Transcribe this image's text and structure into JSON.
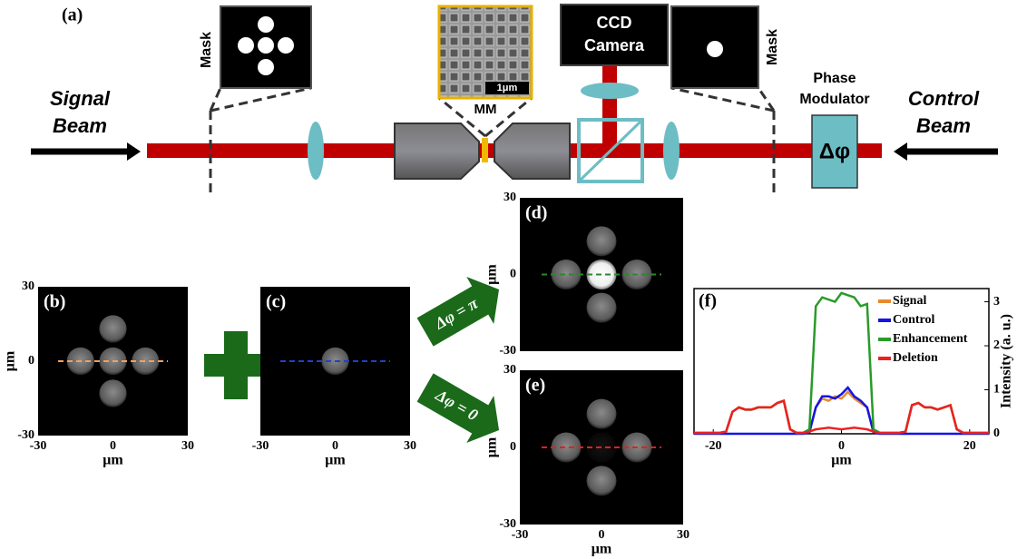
{
  "panel_a": {
    "label": "(a)",
    "signal_beam": [
      "Signal",
      "Beam"
    ],
    "control_beam": [
      "Control",
      "Beam"
    ],
    "mask_left": "Mask",
    "mask_right": "Mask",
    "mm_scale": "1μm",
    "mm": "MM",
    "ccd": [
      "CCD",
      "Camera"
    ],
    "phase_modulator": [
      "Phase",
      "Modulator"
    ],
    "delta_phi": "Δφ"
  },
  "arrows": [
    "Δφ = π",
    "Δφ = 0"
  ],
  "image_extent": [
    -30,
    30
  ],
  "image_panels": [
    {
      "label": "(b)",
      "xticks": [
        -30,
        0,
        30
      ],
      "yticks": [
        30,
        0,
        -30
      ],
      "xlabel": "μm",
      "ylabel": "μm"
    },
    {
      "label": "(c)",
      "xticks": [
        -30,
        0,
        30
      ],
      "xlabel": "μm"
    },
    {
      "label": "(d)",
      "yticks": [
        30,
        0,
        -30
      ],
      "ylabel": "μm"
    },
    {
      "label": "(e)",
      "xticks": [
        -30,
        0,
        30
      ],
      "yticks": [
        30,
        0,
        -30
      ],
      "xlabel": "μm",
      "ylabel": "μm"
    }
  ],
  "chart_data": {
    "type": "line",
    "title": "(f)",
    "xlabel": "μm",
    "ylabel": "Intensity (a. u.)",
    "xlim": [
      -23,
      23
    ],
    "xticks": [
      -20,
      0,
      20
    ],
    "ylim": [
      0,
      3.3
    ],
    "yticks": [
      0,
      1,
      2,
      3
    ],
    "x": [
      -23,
      -22,
      -21,
      -20,
      -19,
      -18,
      -17,
      -16,
      -15,
      -14,
      -13,
      -12,
      -11,
      -10,
      -9,
      -8,
      -7,
      -6,
      -5,
      -4,
      -3,
      -2,
      -1,
      0,
      1,
      2,
      3,
      4,
      5,
      6,
      7,
      8,
      9,
      10,
      11,
      12,
      13,
      14,
      15,
      16,
      17,
      18,
      19,
      20,
      21,
      22,
      23
    ],
    "series": [
      {
        "name": "Signal",
        "color": "#e8892c",
        "values": [
          0.02,
          0.02,
          0.02,
          0.02,
          0.02,
          0.05,
          0.5,
          0.6,
          0.55,
          0.55,
          0.6,
          0.6,
          0.6,
          0.7,
          0.75,
          0.1,
          0.02,
          0.02,
          0.05,
          0.6,
          0.8,
          0.75,
          0.85,
          0.8,
          0.95,
          0.8,
          0.7,
          0.6,
          0.05,
          0.02,
          0.02,
          0.02,
          0.02,
          0.05,
          0.65,
          0.7,
          0.6,
          0.6,
          0.55,
          0.6,
          0.65,
          0.1,
          0.02,
          0.02,
          0.02,
          0.02,
          0.02
        ]
      },
      {
        "name": "Control",
        "color": "#1414e6",
        "values": [
          0,
          0,
          0,
          0,
          0,
          0,
          0,
          0,
          0,
          0,
          0,
          0,
          0,
          0,
          0,
          0,
          0,
          0,
          0.03,
          0.6,
          0.85,
          0.85,
          0.8,
          0.9,
          1.05,
          0.85,
          0.75,
          0.6,
          0.03,
          0,
          0,
          0,
          0,
          0,
          0,
          0,
          0,
          0,
          0,
          0,
          0,
          0,
          0,
          0,
          0,
          0,
          0
        ]
      },
      {
        "name": "Enhancement",
        "color": "#2a9a2a",
        "values": [
          0.02,
          0.02,
          0.02,
          0.02,
          0.02,
          0.05,
          0.5,
          0.6,
          0.55,
          0.55,
          0.6,
          0.6,
          0.6,
          0.7,
          0.75,
          0.1,
          0.02,
          0.02,
          0.1,
          2.9,
          3.1,
          3.05,
          3.0,
          3.2,
          3.15,
          3.1,
          2.9,
          2.95,
          0.1,
          0.02,
          0.02,
          0.02,
          0.02,
          0.05,
          0.65,
          0.7,
          0.6,
          0.6,
          0.55,
          0.6,
          0.65,
          0.1,
          0.02,
          0.02,
          0.02,
          0.02,
          0.02
        ]
      },
      {
        "name": "Deletion",
        "color": "#ee2020",
        "values": [
          0.02,
          0.02,
          0.02,
          0.02,
          0.02,
          0.05,
          0.5,
          0.6,
          0.55,
          0.55,
          0.6,
          0.6,
          0.6,
          0.7,
          0.75,
          0.1,
          0.02,
          0.02,
          0.05,
          0.1,
          0.12,
          0.14,
          0.12,
          0.1,
          0.12,
          0.14,
          0.12,
          0.1,
          0.05,
          0.02,
          0.02,
          0.02,
          0.02,
          0.05,
          0.65,
          0.7,
          0.6,
          0.6,
          0.55,
          0.6,
          0.65,
          0.1,
          0.02,
          0.02,
          0.02,
          0.02,
          0.02
        ]
      }
    ]
  }
}
